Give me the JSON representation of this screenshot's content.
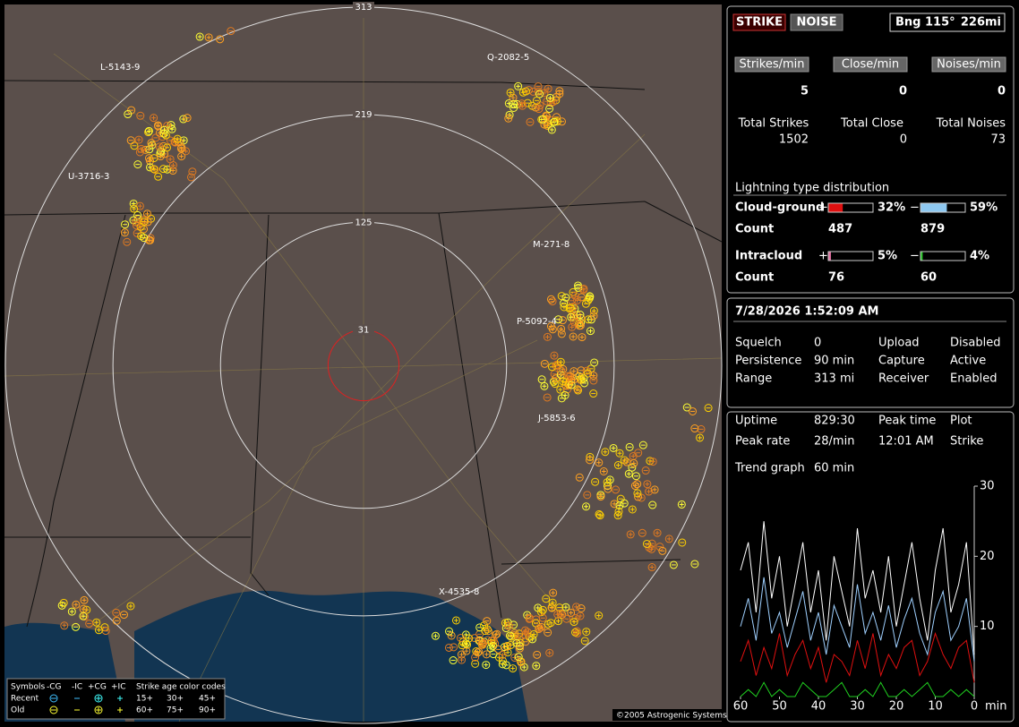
{
  "map": {
    "range_rings": [
      313,
      219,
      125,
      31
    ],
    "storms": [
      "L-5143-9",
      "U-3716-3",
      "Q-2082-5",
      "M-271-8",
      "P-5092-4",
      "J-5853-6",
      "X-4535-8"
    ],
    "legend": {
      "headers": [
        "Symbols",
        "-CG",
        "-IC",
        "+CG",
        "+IC",
        "Strike age color codes"
      ],
      "rows": [
        {
          "label": "Recent",
          "ages": [
            "15+",
            "30+",
            "45+"
          ]
        },
        {
          "label": "Old",
          "ages": [
            "60+",
            "75+",
            "90+"
          ]
        }
      ]
    },
    "copyright": "©2005 Astrogenic Systems"
  },
  "status": {
    "buttons": [
      "STRIKE",
      "NOISE"
    ],
    "bearing": "Bng 115°",
    "distance": "226mi"
  },
  "rates": [
    {
      "label": "Strikes/min",
      "value": 5,
      "total_label": "Total Strikes",
      "total": 1502
    },
    {
      "label": "Close/min",
      "value": 0,
      "total_label": "Total Close",
      "total": 0
    },
    {
      "label": "Noises/min",
      "value": 0,
      "total_label": "Total Noises",
      "total": 73
    }
  ],
  "distribution": {
    "title": "Lightning type distribution",
    "rows": [
      {
        "name": "Cloud-ground",
        "plus_sign": "+",
        "minus_sign": "−",
        "plus": {
          "value": 32,
          "label": "32%",
          "color": "#e01010"
        },
        "minus": {
          "value": 59,
          "label": "59%",
          "color": "#8ec8f0"
        },
        "count_label": "Count",
        "plus_count": 487,
        "minus_count": 879
      },
      {
        "name": "Intracloud",
        "plus_sign": "+",
        "minus_sign": "−",
        "plus": {
          "value": 5,
          "label": "5%",
          "color": "#e070a0"
        },
        "minus": {
          "value": 4,
          "label": "4%",
          "color": "#20c020"
        },
        "count_label": "Count",
        "plus_count": 76,
        "minus_count": 60
      }
    ]
  },
  "clock": "7/28/2026 1:52:09 AM",
  "settings": [
    {
      "label": "Squelch",
      "value": 0,
      "label2": "Upload",
      "value2": "Disabled",
      "color2": "#aaaaaa"
    },
    {
      "label": "Persistence",
      "value": "90 min",
      "label2": "Capture",
      "value2": "Active",
      "color2": "#22dd22"
    },
    {
      "label": "Range",
      "value": "313 mi",
      "label2": "Receiver",
      "value2": "Enabled",
      "color2": "#22dd22"
    }
  ],
  "stats": [
    {
      "label": "Uptime",
      "value": "829:30",
      "label2": "Peak time",
      "value2": "Plot"
    },
    {
      "label": "Peak rate",
      "value": "28/min",
      "label2": "12:01 AM",
      "value2": "Strike"
    },
    {
      "label": "Trend graph",
      "value": "60 min"
    }
  ],
  "trend": {
    "type": "line",
    "x": [
      60,
      58,
      56,
      54,
      52,
      50,
      48,
      46,
      44,
      42,
      40,
      38,
      36,
      34,
      32,
      30,
      28,
      26,
      24,
      22,
      20,
      18,
      16,
      14,
      12,
      10,
      8,
      6,
      4,
      2,
      0
    ],
    "xlim": [
      60,
      0
    ],
    "xticks": [
      60,
      50,
      40,
      30,
      20,
      10,
      0
    ],
    "x_unit": "min",
    "ylim": [
      0,
      30
    ],
    "yticks": [
      10,
      20,
      30
    ],
    "series": [
      {
        "color": "#ffffff",
        "values": [
          18,
          22,
          12,
          25,
          14,
          20,
          10,
          16,
          22,
          12,
          18,
          8,
          20,
          15,
          10,
          24,
          14,
          18,
          12,
          20,
          10,
          16,
          22,
          14,
          8,
          18,
          24,
          12,
          16,
          22,
          6
        ]
      },
      {
        "color": "#9fd0ff",
        "values": [
          10,
          14,
          8,
          17,
          9,
          12,
          7,
          11,
          15,
          8,
          12,
          6,
          13,
          10,
          7,
          16,
          9,
          12,
          8,
          13,
          7,
          11,
          14,
          9,
          6,
          12,
          15,
          8,
          10,
          14,
          5
        ]
      },
      {
        "color": "#e01010",
        "values": [
          5,
          8,
          3,
          7,
          4,
          9,
          3,
          6,
          8,
          4,
          7,
          2,
          6,
          5,
          3,
          8,
          4,
          9,
          3,
          6,
          4,
          7,
          8,
          3,
          5,
          9,
          6,
          4,
          7,
          8,
          2
        ]
      },
      {
        "color": "#20d020",
        "values": [
          0,
          1,
          0,
          2,
          0,
          1,
          0,
          0,
          2,
          1,
          0,
          0,
          1,
          2,
          0,
          0,
          1,
          0,
          2,
          0,
          0,
          1,
          0,
          1,
          2,
          0,
          0,
          1,
          0,
          1,
          0
        ]
      }
    ]
  }
}
